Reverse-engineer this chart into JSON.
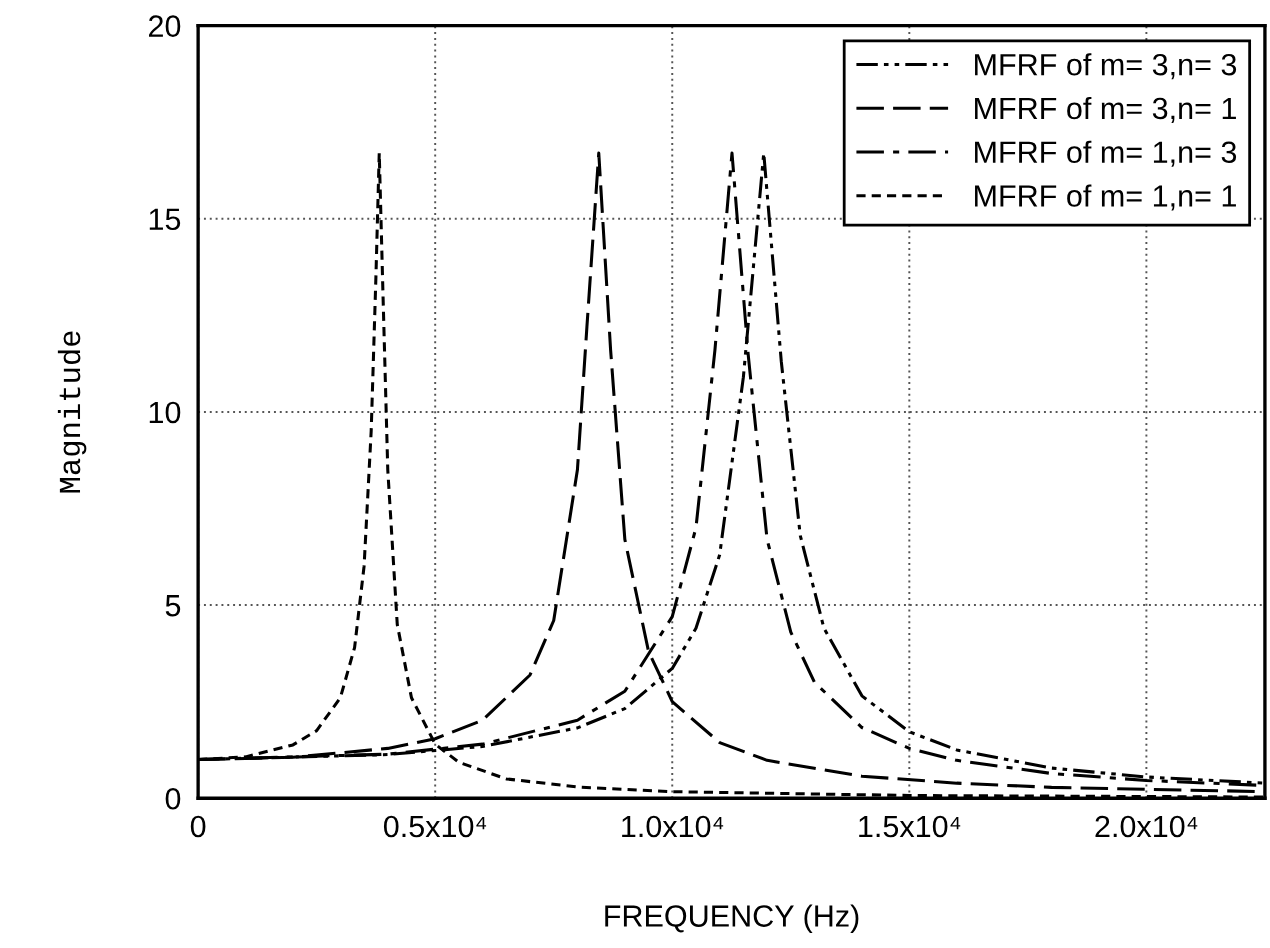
{
  "chart_data": {
    "type": "line",
    "xlabel": "FREQUENCY (Hz)",
    "ylabel": "Magnitude",
    "xlim": [
      0,
      22500
    ],
    "ylim": [
      0,
      20
    ],
    "xticks": [
      0,
      {
        "value": 5000,
        "label": "0.5x10⁴"
      },
      {
        "value": 10000,
        "label": "1.0x10⁴"
      },
      {
        "value": 15000,
        "label": "1.5x10⁴"
      },
      {
        "value": 20000,
        "label": "2.0x10⁴"
      }
    ],
    "yticks": [
      0,
      5,
      10,
      15,
      20
    ],
    "grid": true,
    "legend": "top right",
    "marker": "none",
    "series": [
      {
        "name": "MFRF of m= 3,n= 3",
        "color": "#000000",
        "line_style": "dashdotdot",
        "x": [
          0,
          4000,
          6000,
          8000,
          9000,
          10000,
          10500,
          11000,
          11500,
          11930,
          12300,
          12700,
          13200,
          14000,
          15000,
          16000,
          18000,
          20000,
          22500
        ],
        "values": [
          1,
          1.13,
          1.34,
          1.82,
          2.32,
          3.36,
          4.4,
          6.3,
          10.9,
          16.7,
          11.3,
          6.8,
          4.4,
          2.65,
          1.72,
          1.25,
          0.78,
          0.55,
          0.39
        ]
      },
      {
        "name": "MFRF of m= 3,n= 1",
        "color": "#000000",
        "line_style": "longdash",
        "x": [
          0,
          2000,
          4000,
          5000,
          6000,
          7000,
          7500,
          8000,
          8200,
          8450,
          8700,
          9000,
          9500,
          10000,
          11000,
          12000,
          14000,
          16000,
          18000,
          22500
        ],
        "values": [
          1,
          1.06,
          1.29,
          1.54,
          2.02,
          3.19,
          4.6,
          8.5,
          12.2,
          16.7,
          11.6,
          6.7,
          3.8,
          2.5,
          1.44,
          0.98,
          0.57,
          0.39,
          0.28,
          0.17
        ]
      },
      {
        "name": "MFRF of m= 1,n= 3",
        "color": "#000000",
        "line_style": "dashdot",
        "x": [
          0,
          4000,
          6000,
          8000,
          9000,
          10000,
          10500,
          10900,
          11260,
          11600,
          12000,
          12500,
          13000,
          14000,
          15000,
          16000,
          18000,
          20000,
          22500
        ],
        "values": [
          1,
          1.14,
          1.4,
          2.02,
          2.77,
          4.7,
          7.0,
          11.6,
          16.7,
          11.5,
          6.7,
          4.3,
          3.0,
          1.83,
          1.29,
          0.98,
          0.64,
          0.46,
          0.33
        ]
      },
      {
        "name": "MFRF of m= 1,n= 1",
        "color": "#000000",
        "line_style": "shortdash",
        "x": [
          0,
          1000,
          2000,
          2500,
          3000,
          3300,
          3500,
          3650,
          3750,
          3820,
          3900,
          4000,
          4200,
          4500,
          5000,
          5500,
          6500,
          8000,
          10000,
          15000,
          22500
        ],
        "values": [
          1,
          1.07,
          1.38,
          1.75,
          2.6,
          3.9,
          6.0,
          9.5,
          13.5,
          16.7,
          13.0,
          8.5,
          4.5,
          2.6,
          1.4,
          0.93,
          0.5,
          0.29,
          0.17,
          0.07,
          0.03
        ]
      }
    ]
  }
}
